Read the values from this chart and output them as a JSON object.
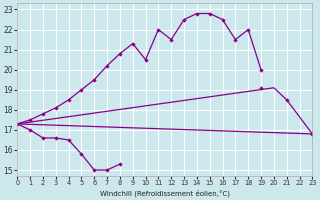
{
  "xlabel": "Windchill (Refroidissement éolien,°C)",
  "bg_color": "#cce8ec",
  "grid_color": "#ffffff",
  "line_color": "#880088",
  "xmin": 0,
  "xmax": 23,
  "ymin": 14.7,
  "ymax": 23.3,
  "yticks": [
    15,
    16,
    17,
    18,
    19,
    20,
    21,
    22,
    23
  ],
  "xticks": [
    0,
    1,
    2,
    3,
    4,
    5,
    6,
    7,
    8,
    9,
    10,
    11,
    12,
    13,
    14,
    15,
    16,
    17,
    18,
    19,
    20,
    21,
    22,
    23
  ],
  "curves": [
    {
      "x": [
        0,
        1,
        2,
        3,
        4,
        5,
        6,
        7,
        8,
        9,
        10,
        11,
        12,
        13,
        14,
        15,
        16,
        17,
        18,
        19,
        20,
        21,
        22,
        23
      ],
      "y": [
        17.3,
        17.0,
        16.6,
        16.6,
        16.5,
        15.8,
        15.0,
        15.0,
        15.3,
        null,
        null,
        null,
        null,
        null,
        null,
        null,
        null,
        null,
        null,
        19.1,
        null,
        18.5,
        null,
        16.8
      ],
      "has_markers": true
    },
    {
      "x": [
        0,
        1,
        2,
        3,
        4,
        5,
        6,
        7,
        8,
        9,
        10,
        11,
        12,
        13,
        14,
        15,
        16,
        17,
        18,
        19,
        20,
        21,
        22,
        23
      ],
      "y": [
        17.3,
        17.5,
        17.8,
        18.1,
        18.5,
        19.0,
        19.5,
        20.2,
        20.8,
        21.3,
        20.5,
        22.0,
        21.5,
        22.5,
        22.8,
        22.8,
        22.5,
        21.5,
        22.0,
        20.0,
        null,
        null,
        null,
        16.8
      ],
      "has_markers": true
    },
    {
      "x": [
        0,
        20,
        21,
        23
      ],
      "y": [
        17.3,
        19.1,
        18.5,
        16.8
      ],
      "has_markers": false
    },
    {
      "x": [
        0,
        23
      ],
      "y": [
        17.3,
        16.8
      ],
      "has_markers": false
    }
  ]
}
